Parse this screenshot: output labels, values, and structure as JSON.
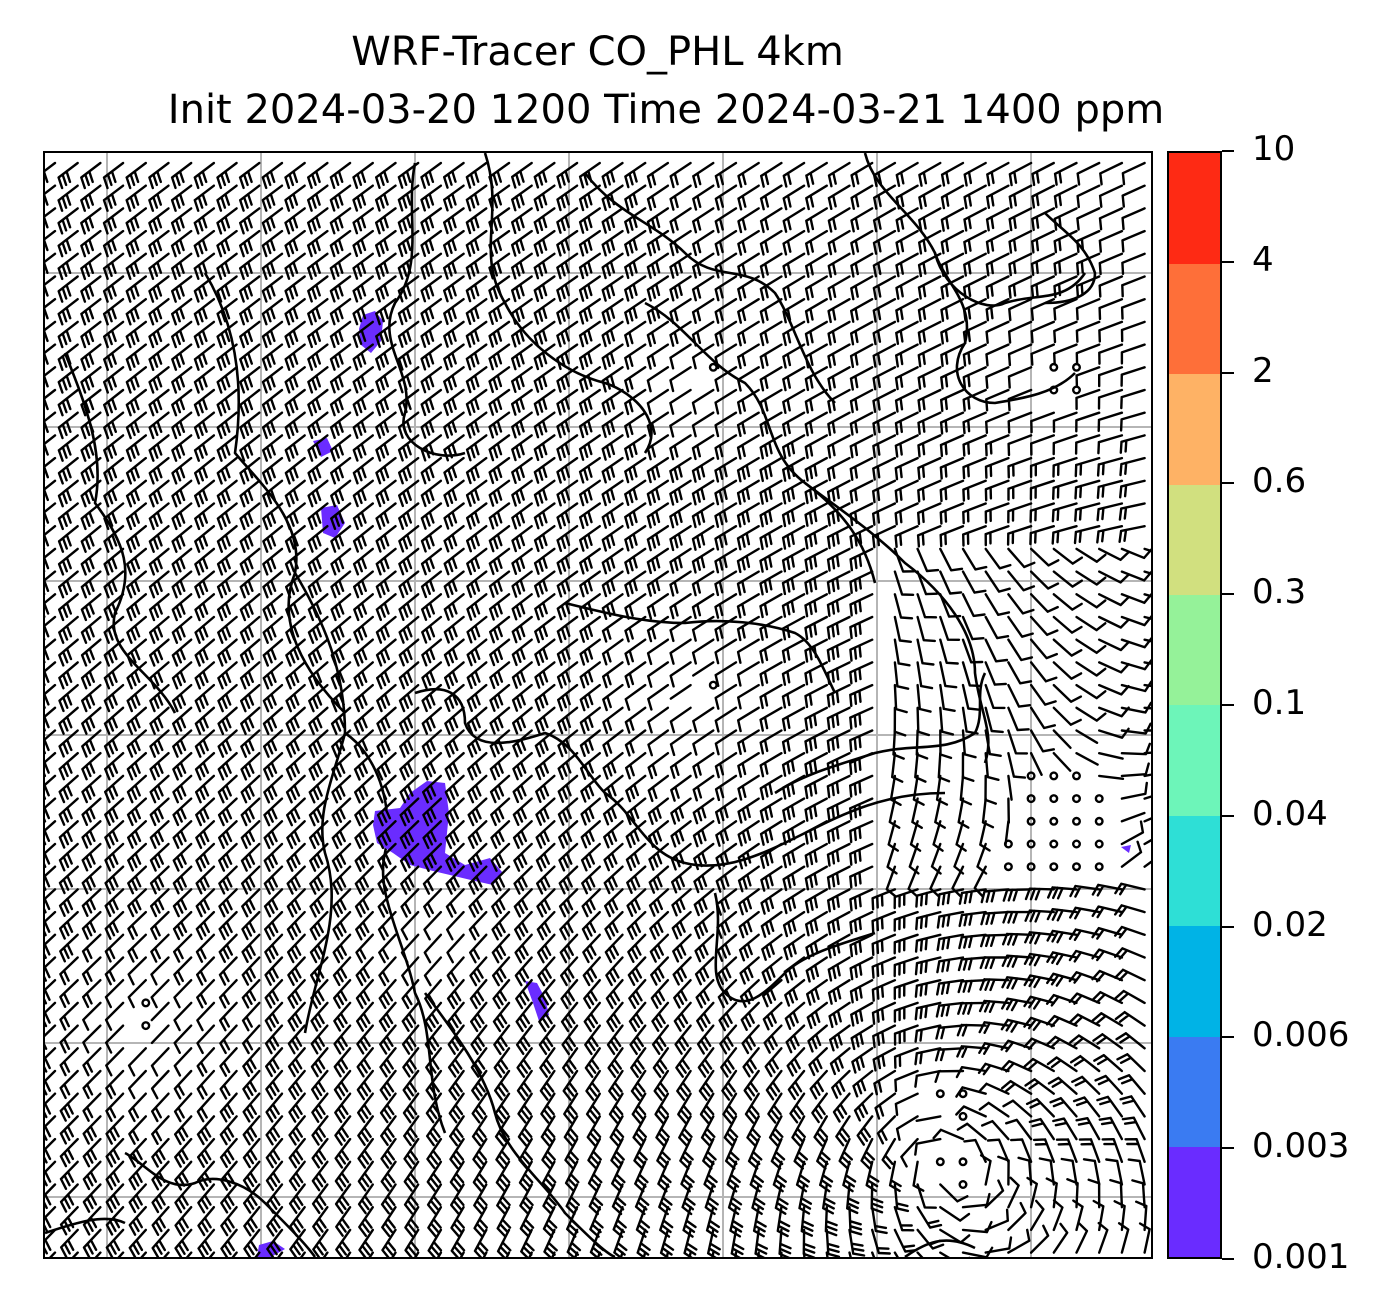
{
  "title": {
    "line1": "WRF-Tracer CO_PHL 4km",
    "line2": "Init 2024-03-20 1200 Time 2024-03-21 1400 ppm"
  },
  "map": {
    "variable": "CO_PHL tracer",
    "overlay": "wind barbs",
    "gridlines": true,
    "tracer_color": "#6a2cff"
  },
  "colorbar": {
    "labels": [
      "0.001",
      "0.003",
      "0.006",
      "0.02",
      "0.04",
      "0.1",
      "0.3",
      "0.6",
      "2",
      "4",
      "10"
    ],
    "colors": [
      "#6a2cff",
      "#3a7bf2",
      "#00b3e6",
      "#2edfd6",
      "#6df5b9",
      "#95f299",
      "#d1e07f",
      "#feb265",
      "#fe6f39",
      "#fe2a14"
    ]
  }
}
